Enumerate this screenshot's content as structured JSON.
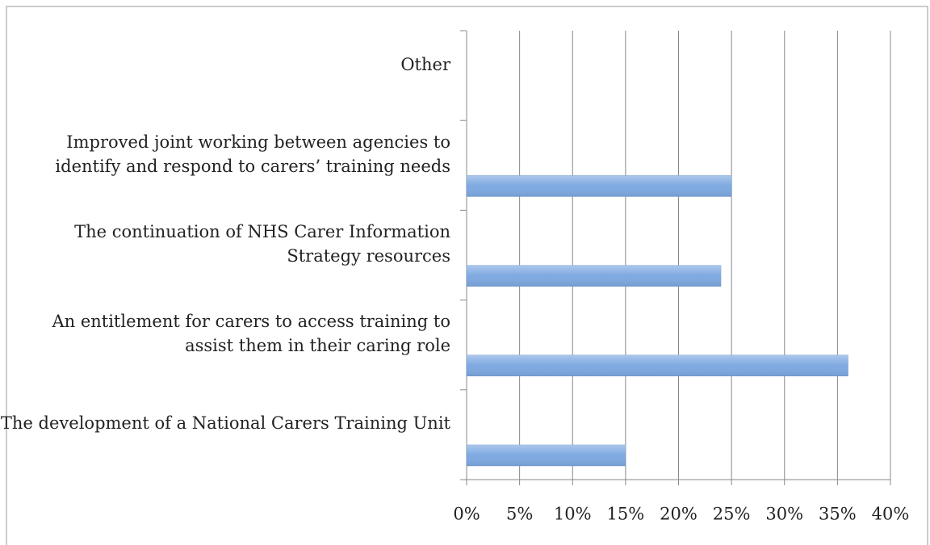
{
  "chart_data": {
    "type": "bar",
    "orientation": "horizontal",
    "categories": [
      "The development of a National Carers Training Unit",
      "An entitlement for carers to access training to assist them in their caring role",
      "The continuation of NHS Carer Information Strategy resources",
      "Improved joint working between agencies to identify and respond to carers’ training needs",
      "Other"
    ],
    "values": [
      15,
      36,
      24,
      25,
      0
    ],
    "color": "#7ea9e1",
    "xlim": [
      0,
      40
    ],
    "xticks": [
      {
        "value": 0,
        "label": "0%"
      },
      {
        "value": 5,
        "label": "5%"
      },
      {
        "value": 10,
        "label": "10%"
      },
      {
        "value": 15,
        "label": "15%"
      },
      {
        "value": 20,
        "label": "20%"
      },
      {
        "value": 25,
        "label": "25%"
      },
      {
        "value": 30,
        "label": "30%"
      },
      {
        "value": 35,
        "label": "35%"
      },
      {
        "value": 40,
        "label": "40%"
      }
    ],
    "grid": true
  }
}
